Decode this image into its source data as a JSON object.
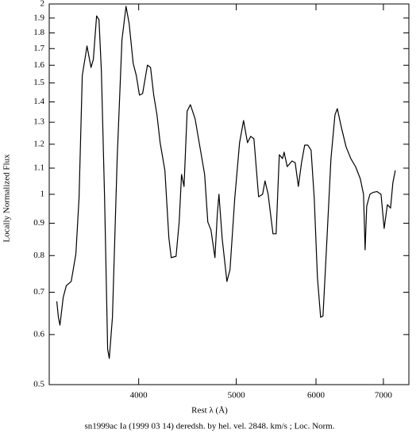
{
  "chart_data": {
    "type": "line",
    "footer": "sn1999ac Ia (1999 03 14) deredsh. by hel. vel.  2848. km/s ;  Loc. Norm.",
    "x_label": "Rest λ (Å)",
    "y_label": "Locally Normalized Flux",
    "x": [
      3317,
      3329,
      3341,
      3366,
      3390,
      3428,
      3465,
      3490,
      3516,
      3542,
      3554,
      3587,
      3606,
      3633,
      3653,
      3673,
      3700,
      3726,
      3740,
      3767,
      3808,
      3850,
      3886,
      3914,
      3950,
      3978,
      4007,
      4036,
      4081,
      4110,
      4140,
      4171,
      4201,
      4247,
      4286,
      4309,
      4357,
      4388,
      4412,
      4437,
      4469,
      4502,
      4551,
      4601,
      4651,
      4685,
      4719,
      4762,
      4788,
      4806,
      4841,
      4894,
      4929,
      4983,
      5038,
      5084,
      5130,
      5168,
      5206,
      5262,
      5310,
      5340,
      5378,
      5438,
      5477,
      5517,
      5558,
      5578,
      5618,
      5680,
      5721,
      5763,
      5805,
      5847,
      5890,
      5933,
      5976,
      6020,
      6064,
      6097,
      6153,
      6209,
      6266,
      6300,
      6357,
      6427,
      6497,
      6568,
      6640,
      6689,
      6713,
      6738,
      6787,
      6836,
      6898,
      6962,
      7012,
      7064,
      7115,
      7154,
      7193
    ],
    "values": [
      0.677,
      0.639,
      0.621,
      0.687,
      0.717,
      0.728,
      0.805,
      0.986,
      1.542,
      1.658,
      1.716,
      1.587,
      1.634,
      1.915,
      1.888,
      1.565,
      0.986,
      0.569,
      0.55,
      0.639,
      1.139,
      1.756,
      1.983,
      1.861,
      1.611,
      1.542,
      1.435,
      1.443,
      1.601,
      1.587,
      1.435,
      1.335,
      1.207,
      1.091,
      0.853,
      0.794,
      0.798,
      0.904,
      1.075,
      1.029,
      1.354,
      1.386,
      1.316,
      1.189,
      1.075,
      0.904,
      0.878,
      0.794,
      0.93,
      1.0,
      0.853,
      0.728,
      0.76,
      0.986,
      1.207,
      1.308,
      1.207,
      1.235,
      1.224,
      0.991,
      1.0,
      1.05,
      1.0,
      0.866,
      0.866,
      1.155,
      1.139,
      1.166,
      1.106,
      1.129,
      1.122,
      1.029,
      1.122,
      1.196,
      1.196,
      1.174,
      0.986,
      0.738,
      0.639,
      0.642,
      0.853,
      1.139,
      1.335,
      1.366,
      1.278,
      1.189,
      1.139,
      1.106,
      1.058,
      1.0,
      0.817,
      0.958,
      1.0,
      1.007,
      1.01,
      1.0,
      0.883,
      0.963,
      0.951,
      1.044,
      1.091
    ],
    "color": "#000000",
    "xlim": [
      3260,
      7420
    ],
    "ylim": [
      0.5,
      2
    ],
    "xlog": true,
    "ylog": true,
    "xticks": [
      4000,
      5000,
      6000,
      7000
    ],
    "yticks": [
      0.5,
      0.6,
      0.7,
      0.8,
      0.9,
      1,
      1.1,
      1.2,
      1.3,
      1.4,
      1.5,
      1.6,
      1.7,
      1.8,
      1.9,
      2
    ]
  }
}
